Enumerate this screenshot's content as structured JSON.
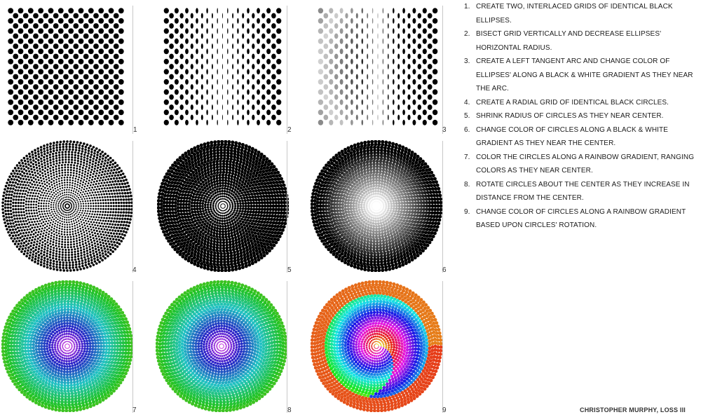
{
  "panels": [
    {
      "number": "1",
      "kind": "grid",
      "description_style": "uniform"
    },
    {
      "number": "2",
      "kind": "grid",
      "description_style": "bisect"
    },
    {
      "number": "3",
      "kind": "grid",
      "description_style": "arc-gradient"
    },
    {
      "number": "4",
      "kind": "radial",
      "description_style": "shrink"
    },
    {
      "number": "5",
      "kind": "radial",
      "description_style": "black"
    },
    {
      "number": "6",
      "kind": "radial",
      "description_style": "gray-gradient"
    },
    {
      "number": "7",
      "kind": "radial",
      "description_style": "rainbow"
    },
    {
      "number": "8",
      "kind": "radial",
      "description_style": "rainbow-rotated"
    },
    {
      "number": "9",
      "kind": "radial",
      "description_style": "rainbow-by-rotation"
    }
  ],
  "steps": [
    {
      "n": "1.",
      "text": "CREATE TWO, INTERLACED GRIDS OF IDENTICAL BLACK ELLIPSES."
    },
    {
      "n": "2.",
      "text": "BISECT GRID VERTICALLY AND DECREASE ELLIPSES' HORIZONTAL RADIUS."
    },
    {
      "n": "3.",
      "text": "CREATE A LEFT TANGENT ARC AND CHANGE COLOR OF ELLIPSES' ALONG A BLACK & WHITE GRADIENT AS THEY NEAR THE ARC."
    },
    {
      "n": "4.",
      "text": "CREATE A RADIAL GRID OF IDENTICAL BLACK CIRCLES."
    },
    {
      "n": "5.",
      "text": "SHRINK RADIUS OF CIRCLES AS THEY NEAR CENTER."
    },
    {
      "n": "6.",
      "text": "CHANGE COLOR OF CIRCLES ALONG A BLACK & WHITE GRADIENT AS THEY NEAR THE CENTER."
    },
    {
      "n": "7.",
      "text": "COLOR THE CIRCLES ALONG A RAINBOW GRADIENT, RANGING COLORS AS THEY NEAR CENTER."
    },
    {
      "n": "8.",
      "text": "ROTATE CIRCLES ABOUT THE CENTER AS THEY INCREASE IN DISTANCE FROM THE CENTER."
    },
    {
      "n": "9.",
      "text": "CHANGE COLOR OF CIRCLES ALONG A RAINBOW GRADIENT BASED UPON CIRCLES' ROTATION."
    }
  ],
  "credit": "CHRISTOPHER MURPHY, LOSS III",
  "colors": {
    "ink": "#000000",
    "divider": "#c8c8c8",
    "rainbow_outer": "#2e9e2e",
    "rainbow_mid": "#1fa8d8",
    "rainbow_inner": "#c0308c",
    "panel9_outer": "#d83a1a"
  }
}
